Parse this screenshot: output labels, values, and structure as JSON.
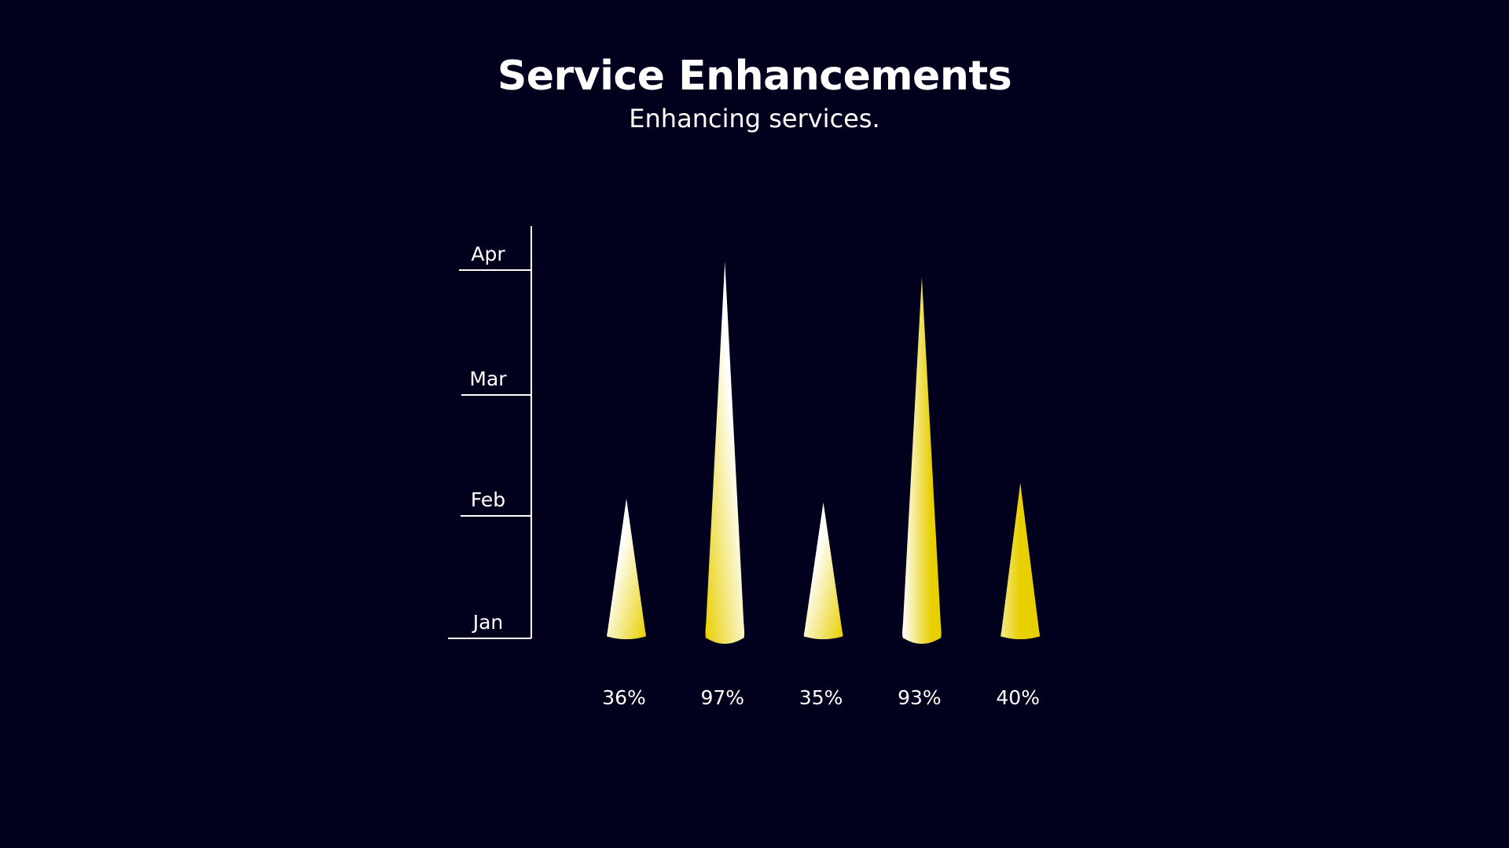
{
  "chart_data": {
    "type": "bar",
    "title": "Service Enhancements",
    "subtitle": "Enhancing services.",
    "categories": [
      "",
      "",
      "",
      "",
      ""
    ],
    "values": [
      36,
      97,
      35,
      93,
      40
    ],
    "value_labels": [
      "36%",
      "97%",
      "35%",
      "93%",
      "40%"
    ],
    "y_tick_labels": [
      "Jan",
      "Feb",
      "Mar",
      "Apr"
    ],
    "ylim": [
      0,
      100
    ],
    "grid": false,
    "legend": "none",
    "colors": {
      "background": "#01011e",
      "light": "#ffffff",
      "accent": "#e8cf00",
      "axis": "#ffffff"
    }
  }
}
